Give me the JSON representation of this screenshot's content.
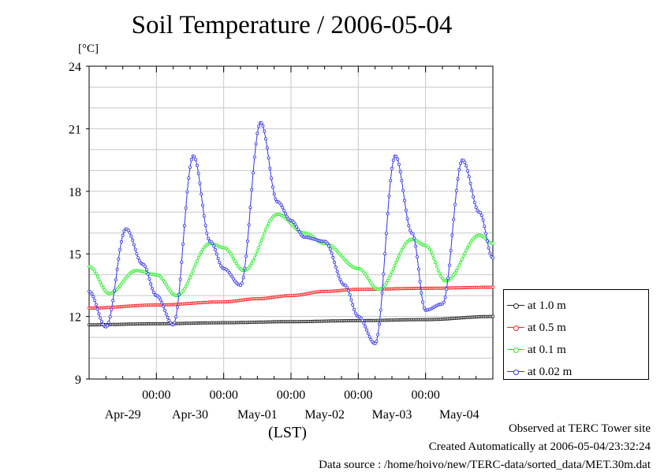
{
  "chart_data": {
    "type": "line",
    "title": "Soil Temperature / 2006-05-04",
    "unit_label": "[°C]",
    "xlabel": "(LST)",
    "ylim": [
      9,
      24
    ],
    "yticks": [
      9,
      12,
      15,
      18,
      21,
      24
    ],
    "xlim_days": [
      0,
      6
    ],
    "time_tick_labels": [
      "00:00",
      "00:00",
      "00:00",
      "00:00",
      "00:00"
    ],
    "date_labels": [
      "Apr-29",
      "Apr-30",
      "May-01",
      "May-02",
      "May-03",
      "May-04"
    ],
    "grid": true,
    "legend_position": "right",
    "series": [
      {
        "name": "at 1.0 m",
        "color": "#222222",
        "points": [
          [
            0,
            11.6
          ],
          [
            1,
            11.65
          ],
          [
            2,
            11.7
          ],
          [
            3,
            11.75
          ],
          [
            4,
            11.8
          ],
          [
            5,
            11.85
          ],
          [
            6,
            12.0
          ]
        ]
      },
      {
        "name": "at 0.5 m",
        "color": "#ff2020",
        "points": [
          [
            0,
            12.4
          ],
          [
            1,
            12.55
          ],
          [
            2,
            12.7
          ],
          [
            2.5,
            12.85
          ],
          [
            3,
            13.0
          ],
          [
            3.5,
            13.2
          ],
          [
            4,
            13.3
          ],
          [
            5,
            13.35
          ],
          [
            6,
            13.4
          ]
        ]
      },
      {
        "name": "at 0.1 m",
        "color": "#22ee22",
        "points": [
          [
            0,
            14.4
          ],
          [
            0.3,
            13.1
          ],
          [
            0.7,
            14.2
          ],
          [
            1,
            14.0
          ],
          [
            1.3,
            13.0
          ],
          [
            1.8,
            15.5
          ],
          [
            2,
            15.3
          ],
          [
            2.3,
            14.2
          ],
          [
            2.8,
            16.9
          ],
          [
            3.2,
            16.0
          ],
          [
            3.5,
            15.5
          ],
          [
            4,
            14.3
          ],
          [
            4.3,
            13.3
          ],
          [
            4.8,
            15.7
          ],
          [
            5,
            15.4
          ],
          [
            5.3,
            13.7
          ],
          [
            5.8,
            15.9
          ],
          [
            6,
            15.5
          ]
        ]
      },
      {
        "name": "at 0.02 m",
        "color": "#3333ee",
        "points": [
          [
            0,
            13.2
          ],
          [
            0.25,
            11.5
          ],
          [
            0.55,
            16.2
          ],
          [
            0.8,
            14.5
          ],
          [
            1,
            13.0
          ],
          [
            1.25,
            11.6
          ],
          [
            1.55,
            19.7
          ],
          [
            1.8,
            15.6
          ],
          [
            2,
            14.3
          ],
          [
            2.25,
            13.5
          ],
          [
            2.55,
            21.3
          ],
          [
            2.8,
            17.5
          ],
          [
            3,
            16.6
          ],
          [
            3.2,
            15.8
          ],
          [
            3.5,
            15.6
          ],
          [
            3.8,
            13.5
          ],
          [
            4,
            12.0
          ],
          [
            4.25,
            10.7
          ],
          [
            4.55,
            19.7
          ],
          [
            4.8,
            16.0
          ],
          [
            5,
            12.3
          ],
          [
            5.25,
            12.6
          ],
          [
            5.55,
            19.5
          ],
          [
            5.8,
            17.0
          ],
          [
            6,
            14.8
          ]
        ]
      }
    ]
  },
  "footer": {
    "line1": "Observed at TERC Tower site",
    "line2": "Created Automatically at 2006-05-04/23:32:24",
    "line3": "Data source : /home/hoivo/new/TERC-data/sorted_data/MET.30m.dat"
  }
}
